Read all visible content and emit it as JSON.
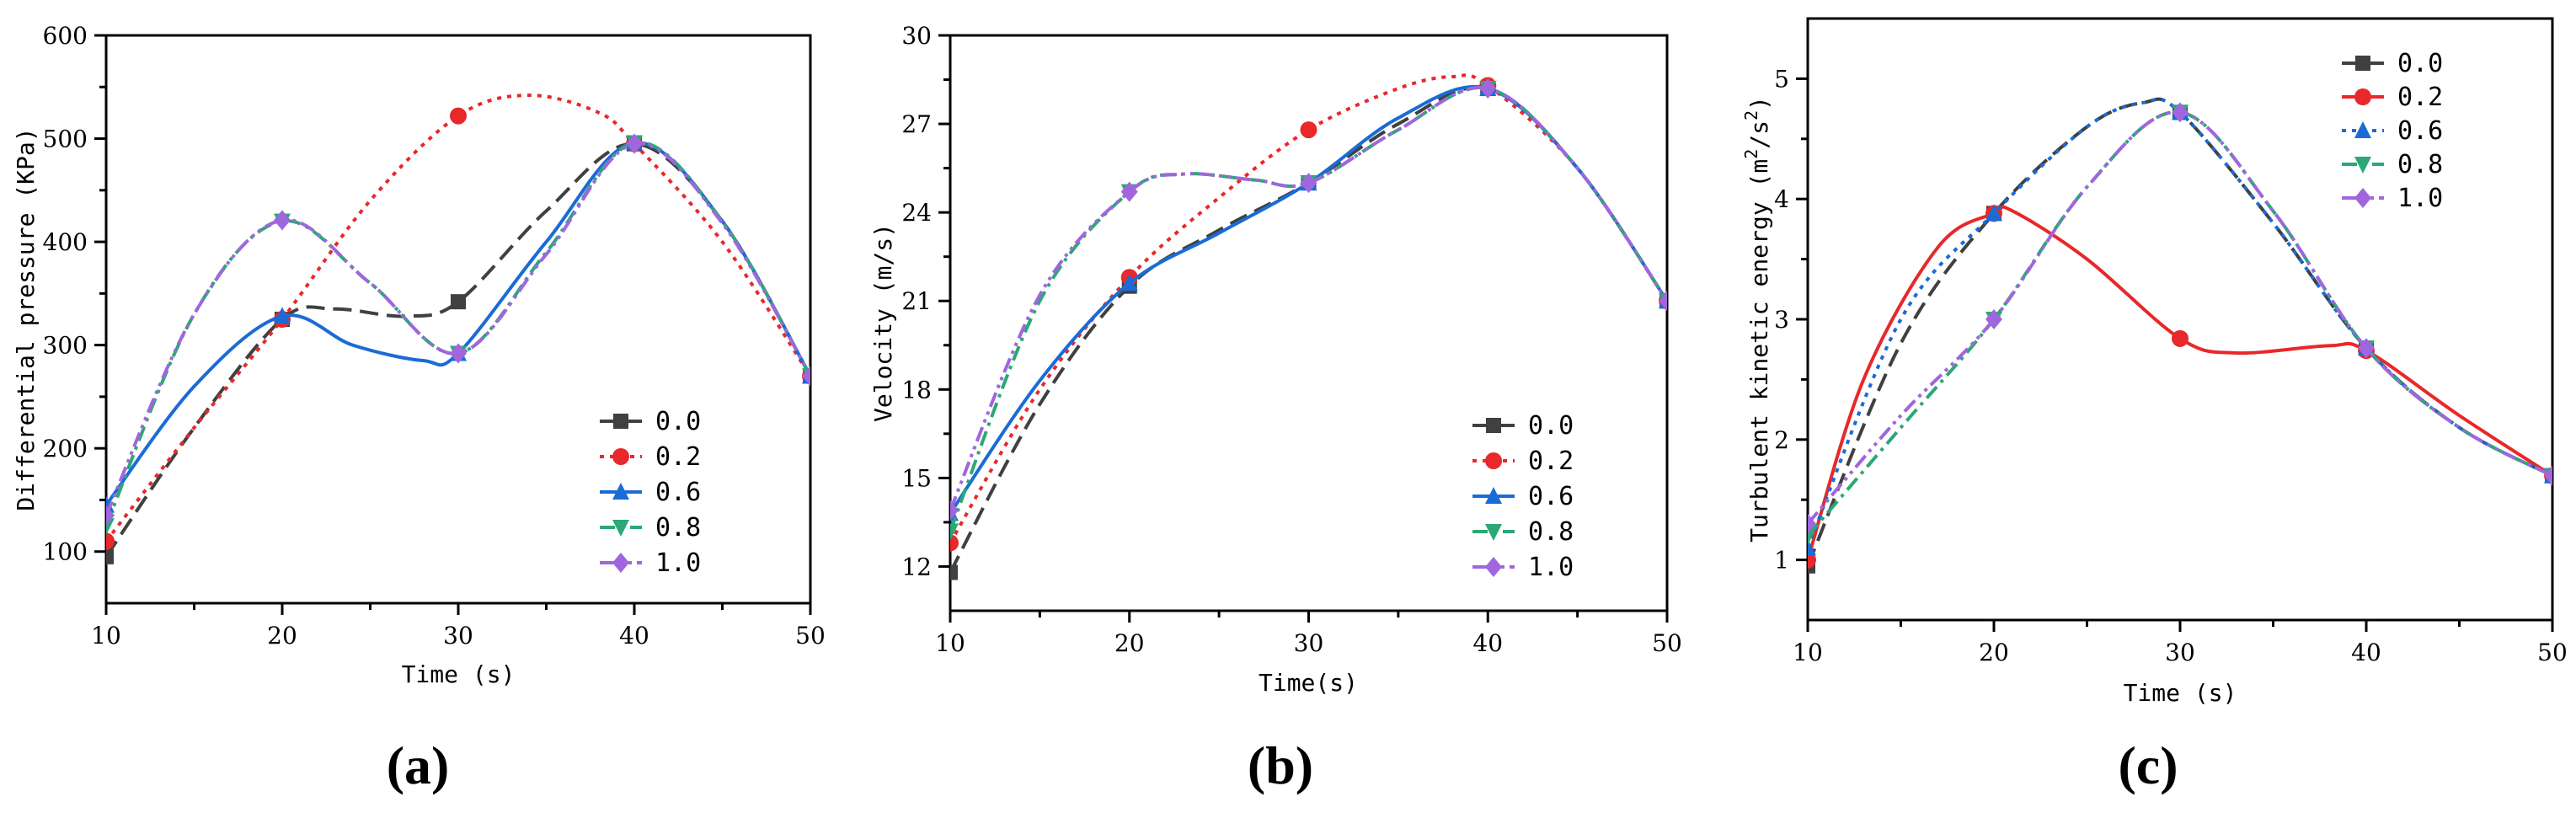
{
  "colors": {
    "0.0": "#404040",
    "0.2": "#e8282a",
    "0.6": "#1b6bd6",
    "0.8": "#2aa876",
    "1.0": "#a066dd"
  },
  "chart_data": [
    {
      "type": "line",
      "panel_label": "(a)",
      "xlabel": "Time (s)",
      "ylabel": "Differential pressure (KPa)",
      "xlim": [
        10,
        50
      ],
      "ylim": [
        50,
        600
      ],
      "xticks": [
        "10",
        "20",
        "30",
        "40",
        "50"
      ],
      "yticks": [
        "100",
        "200",
        "300",
        "400",
        "500",
        "600"
      ],
      "legend_position": "bottom-right",
      "series": [
        {
          "name": "0.0",
          "marker": "square",
          "dash": "long-dash",
          "x": [
            10,
            15,
            20,
            23,
            27,
            30,
            35,
            40,
            45,
            50
          ],
          "y": [
            95,
            220,
            325,
            335,
            328,
            342,
            430,
            495,
            420,
            270
          ],
          "markers": [
            10,
            20,
            30,
            40,
            50
          ]
        },
        {
          "name": "0.2",
          "marker": "circle",
          "dash": "dot",
          "x": [
            10,
            15,
            20,
            25,
            30,
            34,
            38,
            40,
            45,
            50
          ],
          "y": [
            110,
            220,
            325,
            440,
            522,
            542,
            525,
            495,
            400,
            270
          ],
          "markers": [
            10,
            20,
            30,
            40,
            50
          ]
        },
        {
          "name": "0.6",
          "marker": "triangle-up",
          "dash": "solid",
          "x": [
            10,
            15,
            20,
            24,
            28,
            30,
            35,
            40,
            45,
            50
          ],
          "y": [
            145,
            260,
            328,
            300,
            285,
            292,
            400,
            496,
            420,
            270
          ],
          "markers": [
            10,
            20,
            30,
            40,
            50
          ]
        },
        {
          "name": "0.8",
          "marker": "triangle-down",
          "dash": "dash-dot",
          "x": [
            10,
            15,
            20,
            25,
            30,
            35,
            40,
            45,
            50
          ],
          "y": [
            125,
            330,
            420,
            360,
            292,
            390,
            496,
            420,
            270
          ],
          "markers": [
            10,
            20,
            30,
            40,
            50
          ]
        },
        {
          "name": "1.0",
          "marker": "diamond",
          "dash": "dash-dot-dot",
          "x": [
            10,
            15,
            20,
            25,
            30,
            35,
            40,
            45,
            50
          ],
          "y": [
            135,
            330,
            421,
            360,
            292,
            388,
            495,
            418,
            270
          ],
          "markers": [
            10,
            20,
            30,
            40,
            50
          ]
        }
      ]
    },
    {
      "type": "line",
      "panel_label": "(b)",
      "xlabel": "Time(s)",
      "ylabel": "Velocity (m/s)",
      "xlim": [
        10,
        50
      ],
      "ylim": [
        10.5,
        30
      ],
      "xticks": [
        "10",
        "20",
        "30",
        "40",
        "50"
      ],
      "yticks": [
        "12",
        "15",
        "18",
        "21",
        "24",
        "27",
        "30"
      ],
      "legend_position": "bottom-right",
      "series": [
        {
          "name": "0.0",
          "marker": "square",
          "dash": "long-dash",
          "x": [
            10,
            15,
            20,
            25,
            30,
            35,
            40,
            45,
            50
          ],
          "y": [
            11.8,
            17.5,
            21.5,
            23.4,
            25.0,
            27.0,
            28.2,
            25.5,
            21.0
          ],
          "markers": [
            10,
            20,
            30,
            40,
            50
          ]
        },
        {
          "name": "0.2",
          "marker": "circle",
          "dash": "dot",
          "x": [
            10,
            15,
            20,
            25,
            30,
            35,
            38,
            40,
            45,
            50
          ],
          "y": [
            12.8,
            18.0,
            21.8,
            24.5,
            26.8,
            28.2,
            28.6,
            28.3,
            25.5,
            21.0
          ],
          "markers": [
            10,
            20,
            30,
            40,
            50
          ]
        },
        {
          "name": "0.6",
          "marker": "triangle-up",
          "dash": "solid",
          "x": [
            10,
            15,
            20,
            25,
            30,
            35,
            40,
            45,
            50
          ],
          "y": [
            13.8,
            18.3,
            21.6,
            23.3,
            25.0,
            27.2,
            28.2,
            25.5,
            21.0
          ],
          "markers": [
            10,
            20,
            30,
            40,
            50
          ]
        },
        {
          "name": "0.8",
          "marker": "triangle-down",
          "dash": "dash-dot",
          "x": [
            10,
            15,
            20,
            23,
            27,
            30,
            35,
            40,
            45,
            50
          ],
          "y": [
            13.2,
            21.0,
            24.7,
            25.3,
            25.1,
            25.0,
            26.8,
            28.2,
            25.5,
            21.0
          ],
          "markers": [
            10,
            20,
            30,
            40,
            50
          ]
        },
        {
          "name": "1.0",
          "marker": "diamond",
          "dash": "dash-dot-dot",
          "x": [
            10,
            15,
            20,
            23,
            27,
            30,
            35,
            40,
            45,
            50
          ],
          "y": [
            13.9,
            21.2,
            24.7,
            25.3,
            25.1,
            25.0,
            26.8,
            28.2,
            25.5,
            21.0
          ],
          "markers": [
            10,
            20,
            30,
            40,
            50
          ]
        }
      ]
    },
    {
      "type": "line",
      "panel_label": "(c)",
      "xlabel": "Time (s)",
      "ylabel_main": "Turbulent kinetic energy (m",
      "ylabel_sup1": "2",
      "ylabel_mid": "/s",
      "ylabel_sup2": "2",
      "ylabel_end": ")",
      "xlim": [
        10,
        50
      ],
      "ylim": [
        0.5,
        5.5
      ],
      "xticks": [
        "10",
        "20",
        "30",
        "40",
        "50"
      ],
      "yticks": [
        "1",
        "2",
        "3",
        "4",
        "5"
      ],
      "legend_position": "top-right",
      "series": [
        {
          "name": "0.0",
          "marker": "square",
          "dash": "long-dash",
          "x": [
            10,
            15,
            20,
            25,
            28,
            30,
            35,
            40,
            45,
            50
          ],
          "y": [
            0.95,
            2.8,
            3.88,
            4.6,
            4.8,
            4.72,
            3.8,
            2.76,
            2.1,
            1.7
          ],
          "markers": [
            10,
            20,
            30,
            40,
            50
          ]
        },
        {
          "name": "0.2",
          "marker": "circle",
          "dash": "solid",
          "x": [
            10,
            13,
            17,
            20,
            21,
            25,
            30,
            33,
            38,
            40,
            45,
            50
          ],
          "y": [
            1.0,
            2.5,
            3.6,
            3.88,
            3.9,
            3.5,
            2.84,
            2.72,
            2.78,
            2.74,
            2.2,
            1.7
          ],
          "markers": [
            10,
            20,
            30,
            40,
            50
          ]
        },
        {
          "name": "0.6",
          "marker": "triangle-up",
          "dash": "dot",
          "x": [
            10,
            15,
            20,
            25,
            28,
            30,
            35,
            40,
            45,
            50
          ],
          "y": [
            1.1,
            3.0,
            3.88,
            4.6,
            4.8,
            4.72,
            3.8,
            2.76,
            2.1,
            1.7
          ],
          "markers": [
            10,
            20,
            30,
            40,
            50
          ]
        },
        {
          "name": "0.8",
          "marker": "triangle-down",
          "dash": "dash-dot",
          "x": [
            10,
            15,
            20,
            25,
            30,
            35,
            40,
            45,
            50
          ],
          "y": [
            1.2,
            2.1,
            3.0,
            4.1,
            4.72,
            3.9,
            2.76,
            2.1,
            1.7
          ],
          "markers": [
            10,
            20,
            30,
            40,
            50
          ]
        },
        {
          "name": "1.0",
          "marker": "diamond",
          "dash": "dash-dot-dot",
          "x": [
            10,
            15,
            20,
            25,
            30,
            35,
            40,
            45,
            50
          ],
          "y": [
            1.3,
            2.2,
            3.0,
            4.1,
            4.72,
            3.9,
            2.76,
            2.1,
            1.7
          ],
          "markers": [
            10,
            20,
            30,
            40,
            50
          ]
        }
      ]
    }
  ]
}
